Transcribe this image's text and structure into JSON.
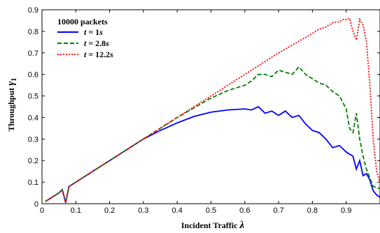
{
  "chart_data": {
    "type": "line",
    "xlabel": "Incident Traffic",
    "xlabel_symbol": "λ",
    "ylabel": "Throughput",
    "ylabel_symbol": "γ",
    "ylabel_subscript": "1",
    "xlim": [
      0,
      1
    ],
    "ylim": [
      0,
      0.9
    ],
    "xticks": [
      "0",
      "0.1",
      "0.2",
      "0.3",
      "0.4",
      "0.5",
      "0.6",
      "0.7",
      "0.8",
      "0.9"
    ],
    "xtick_values": [
      0,
      0.1,
      0.2,
      0.3,
      0.4,
      0.5,
      0.6,
      0.7,
      0.8,
      0.9
    ],
    "yticks": [
      "0",
      "0.1",
      "0.2",
      "0.3",
      "0.4",
      "0.5",
      "0.6",
      "0.7",
      "0.8",
      "0.9"
    ],
    "ytick_values": [
      0,
      0.1,
      0.2,
      0.3,
      0.4,
      0.5,
      0.6,
      0.7,
      0.8,
      0.9
    ],
    "grid": false,
    "legend_title": "10000 packets",
    "legend_position": "top-left",
    "series": [
      {
        "name": "t = 1s",
        "label_var": "t",
        "label_eq": " = 1",
        "label_unit": "s",
        "color": "#0000ff",
        "style": "solid",
        "x": [
          0.01,
          0.03,
          0.05,
          0.06,
          0.07,
          0.08,
          0.1,
          0.15,
          0.2,
          0.25,
          0.3,
          0.35,
          0.4,
          0.45,
          0.5,
          0.55,
          0.6,
          0.62,
          0.64,
          0.66,
          0.68,
          0.7,
          0.72,
          0.74,
          0.76,
          0.78,
          0.8,
          0.82,
          0.84,
          0.86,
          0.88,
          0.9,
          0.92,
          0.93,
          0.94,
          0.95,
          0.96,
          0.97,
          0.98,
          0.99,
          1.0
        ],
        "y": [
          0.01,
          0.03,
          0.05,
          0.065,
          0.005,
          0.08,
          0.1,
          0.15,
          0.2,
          0.25,
          0.3,
          0.34,
          0.375,
          0.405,
          0.425,
          0.435,
          0.44,
          0.435,
          0.45,
          0.42,
          0.43,
          0.41,
          0.43,
          0.4,
          0.41,
          0.37,
          0.34,
          0.33,
          0.3,
          0.26,
          0.27,
          0.24,
          0.22,
          0.16,
          0.2,
          0.13,
          0.14,
          0.11,
          0.06,
          0.04,
          0.03
        ]
      },
      {
        "name": "t = 2.8s",
        "label_var": "t",
        "label_eq": " = 2.8",
        "label_unit": "s",
        "color": "#008000",
        "style": "dashed",
        "x": [
          0.01,
          0.03,
          0.05,
          0.06,
          0.07,
          0.08,
          0.1,
          0.15,
          0.2,
          0.25,
          0.3,
          0.35,
          0.4,
          0.45,
          0.5,
          0.55,
          0.6,
          0.62,
          0.64,
          0.66,
          0.68,
          0.7,
          0.72,
          0.74,
          0.76,
          0.78,
          0.8,
          0.82,
          0.84,
          0.86,
          0.88,
          0.9,
          0.91,
          0.92,
          0.93,
          0.94,
          0.95,
          0.96,
          0.97,
          0.98,
          1.0
        ],
        "y": [
          0.01,
          0.03,
          0.05,
          0.065,
          0.005,
          0.08,
          0.1,
          0.15,
          0.2,
          0.25,
          0.3,
          0.35,
          0.4,
          0.445,
          0.49,
          0.525,
          0.55,
          0.57,
          0.6,
          0.6,
          0.59,
          0.62,
          0.61,
          0.6,
          0.635,
          0.6,
          0.58,
          0.56,
          0.55,
          0.52,
          0.5,
          0.44,
          0.35,
          0.33,
          0.42,
          0.3,
          0.22,
          0.16,
          0.12,
          0.08,
          0.07
        ]
      },
      {
        "name": "t = 12.2s",
        "label_var": "t",
        "label_eq": " = 12.2",
        "label_unit": "s",
        "color": "#ff0000",
        "style": "dotted",
        "x": [
          0.01,
          0.03,
          0.05,
          0.06,
          0.07,
          0.08,
          0.1,
          0.15,
          0.2,
          0.25,
          0.3,
          0.35,
          0.4,
          0.45,
          0.5,
          0.55,
          0.6,
          0.65,
          0.7,
          0.75,
          0.8,
          0.82,
          0.84,
          0.86,
          0.88,
          0.89,
          0.9,
          0.91,
          0.92,
          0.93,
          0.94,
          0.95,
          0.96,
          0.97,
          0.98,
          0.99,
          1.0
        ],
        "y": [
          0.01,
          0.03,
          0.05,
          0.065,
          0.005,
          0.08,
          0.1,
          0.15,
          0.2,
          0.25,
          0.3,
          0.35,
          0.4,
          0.45,
          0.5,
          0.55,
          0.6,
          0.65,
          0.7,
          0.745,
          0.79,
          0.81,
          0.82,
          0.84,
          0.845,
          0.855,
          0.855,
          0.86,
          0.8,
          0.76,
          0.855,
          0.83,
          0.75,
          0.55,
          0.3,
          0.15,
          0.1
        ]
      }
    ]
  }
}
